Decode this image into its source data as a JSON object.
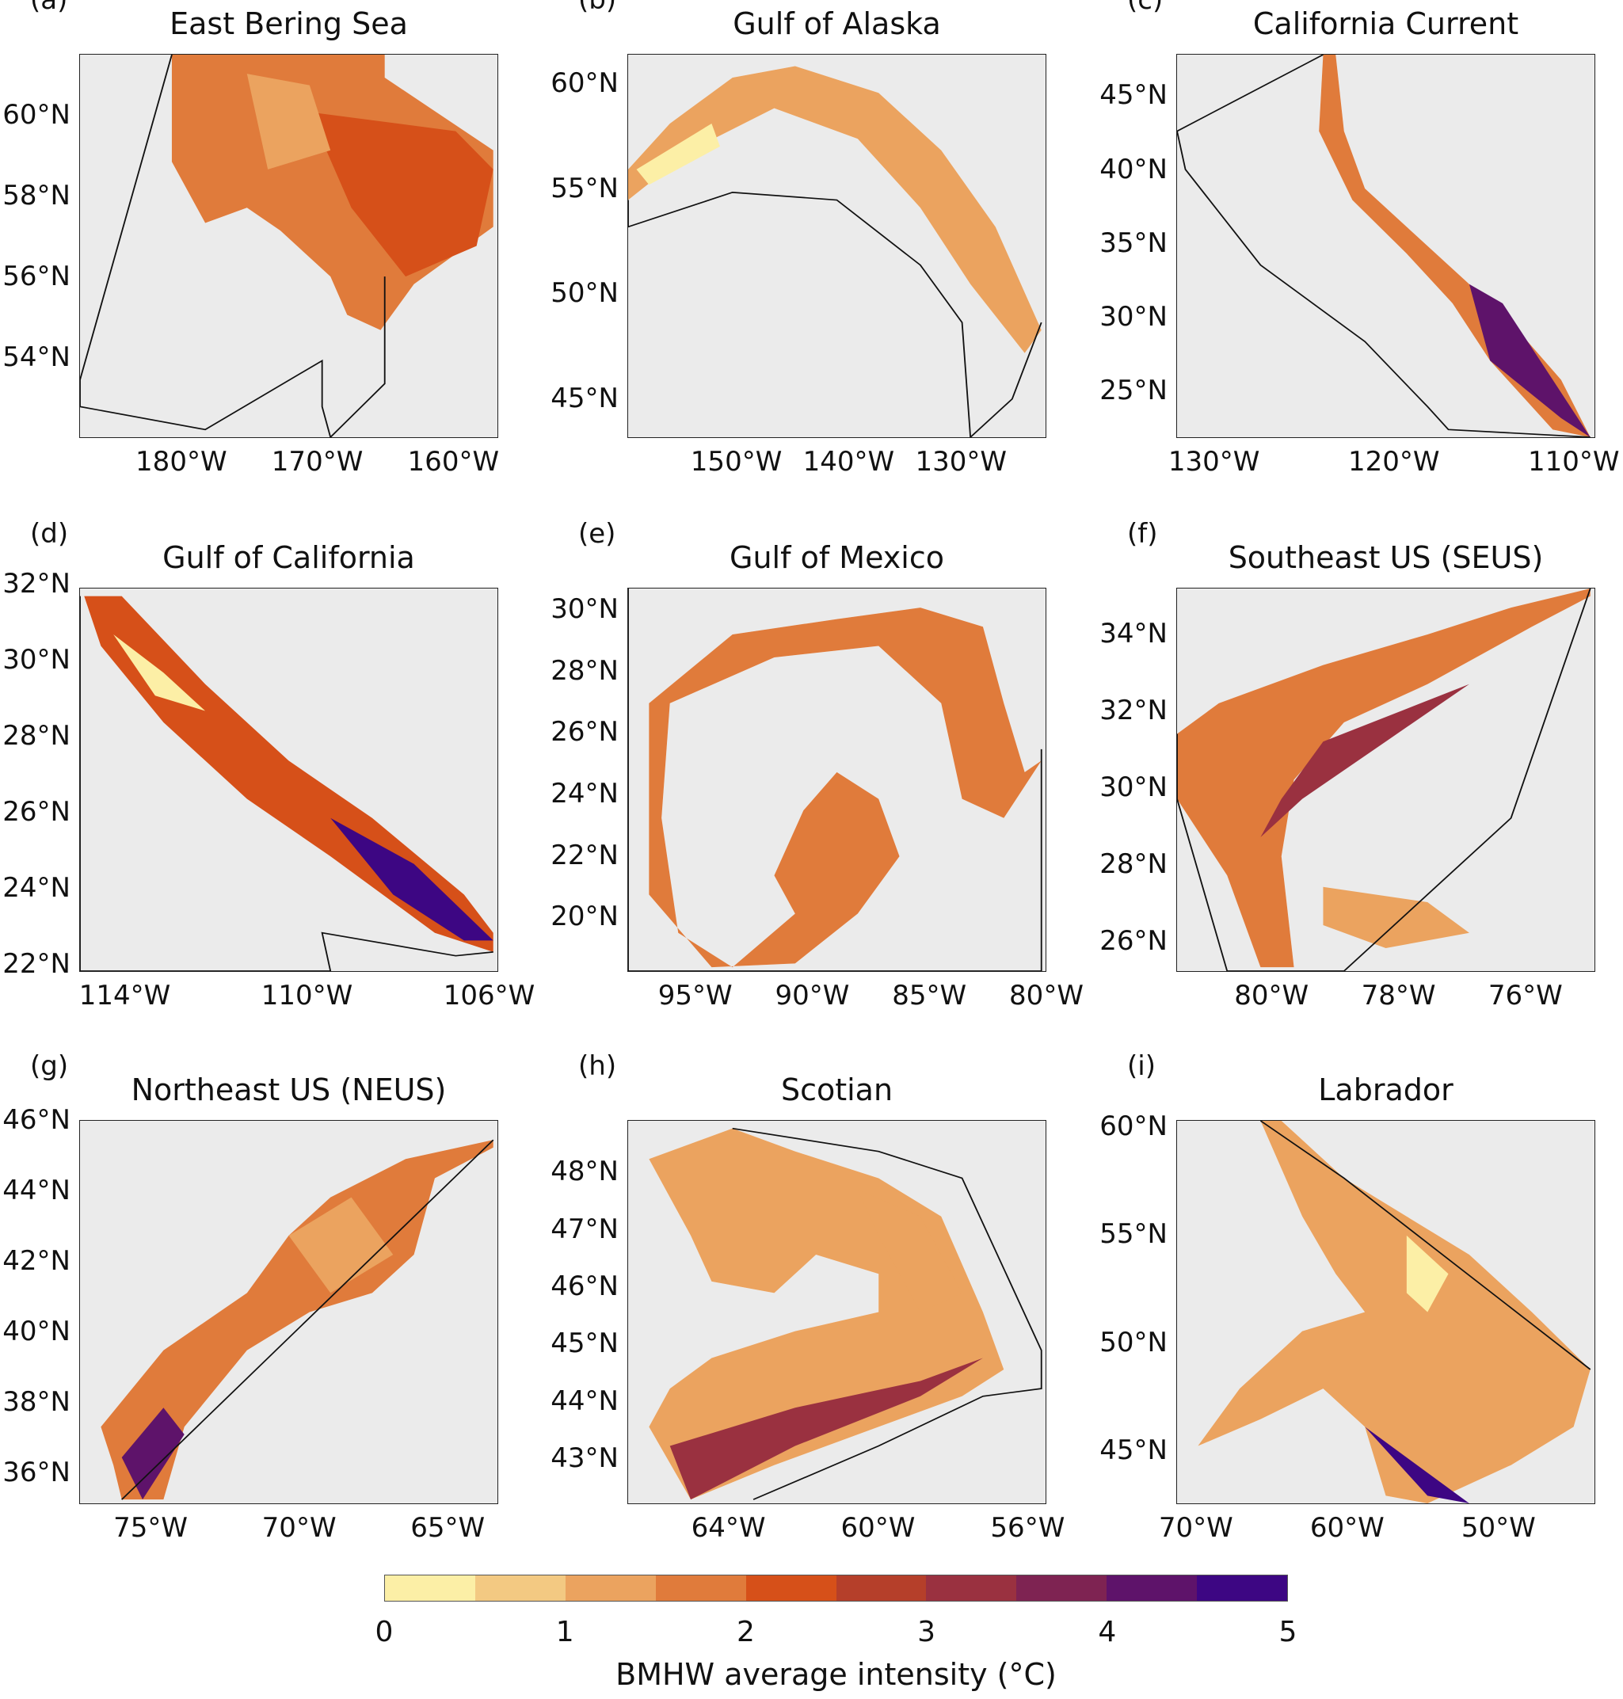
{
  "colorbar": {
    "label": "BMHW average intensity (°C)",
    "range": [
      0,
      5
    ],
    "ticks": [
      "0",
      "1",
      "2",
      "3",
      "4",
      "5"
    ],
    "colors": [
      "#fcefa6",
      "#f3c982",
      "#eba35f",
      "#e07b3b",
      "#d65019",
      "#b53f2a",
      "#9a3140",
      "#7e2352",
      "#5e136a",
      "#3d0683"
    ]
  },
  "panels": [
    {
      "letter": "(a)",
      "title": "East Bering Sea",
      "lon_range": [
        -187.5,
        -156.7
      ],
      "lat_range": [
        52.0,
        61.5
      ],
      "xticks": [
        {
          "v": -180,
          "t": "180°W"
        },
        {
          "v": -170,
          "t": "170°W"
        },
        {
          "v": -160,
          "t": "160°W"
        }
      ],
      "yticks": [
        {
          "v": 60,
          "t": "60°N"
        },
        {
          "v": 58,
          "t": "58°N"
        },
        {
          "v": 56,
          "t": "56°N"
        },
        {
          "v": 54,
          "t": "54°N"
        }
      ]
    },
    {
      "letter": "(b)",
      "title": "Gulf of Alaska",
      "lon_range": [
        -159.7,
        -122.4
      ],
      "lat_range": [
        43.1,
        61.4
      ],
      "xticks": [
        {
          "v": -150,
          "t": "150°W"
        },
        {
          "v": -140,
          "t": "140°W"
        },
        {
          "v": -130,
          "t": "130°W"
        }
      ],
      "yticks": [
        {
          "v": 60,
          "t": "60°N"
        },
        {
          "v": 55,
          "t": "55°N"
        },
        {
          "v": 50,
          "t": "50°N"
        },
        {
          "v": 45,
          "t": "45°N"
        }
      ]
    },
    {
      "letter": "(c)",
      "title": "California Current",
      "lon_range": [
        -132.1,
        -108.8
      ],
      "lat_range": [
        21.8,
        47.8
      ],
      "xticks": [
        {
          "v": -130,
          "t": "130°W"
        },
        {
          "v": -120,
          "t": "120°W"
        },
        {
          "v": -110,
          "t": "110°W"
        }
      ],
      "yticks": [
        {
          "v": 45,
          "t": "45°N"
        },
        {
          "v": 40,
          "t": "40°N"
        },
        {
          "v": 35,
          "t": "35°N"
        },
        {
          "v": 30,
          "t": "30°N"
        },
        {
          "v": 25,
          "t": "25°N"
        }
      ]
    },
    {
      "letter": "(d)",
      "title": "Gulf of California",
      "lon_range": [
        -115.0,
        -105.8
      ],
      "lat_range": [
        21.8,
        31.9
      ],
      "xticks": [
        {
          "v": -114,
          "t": "114°W"
        },
        {
          "v": -110,
          "t": "110°W"
        },
        {
          "v": -106,
          "t": "106°W"
        }
      ],
      "yticks": [
        {
          "v": 32,
          "t": "32°N"
        },
        {
          "v": 30,
          "t": "30°N"
        },
        {
          "v": 28,
          "t": "28°N"
        },
        {
          "v": 26,
          "t": "26°N"
        },
        {
          "v": 24,
          "t": "24°N"
        },
        {
          "v": 22,
          "t": "22°N"
        }
      ]
    },
    {
      "letter": "(e)",
      "title": "Gulf of Mexico",
      "lon_range": [
        -97.9,
        -80.0
      ],
      "lat_range": [
        18.2,
        30.7
      ],
      "xticks": [
        {
          "v": -95,
          "t": "95°W"
        },
        {
          "v": -90,
          "t": "90°W"
        },
        {
          "v": -85,
          "t": "85°W"
        },
        {
          "v": -80,
          "t": "80°W"
        }
      ],
      "yticks": [
        {
          "v": 30,
          "t": "30°N"
        },
        {
          "v": 28,
          "t": "28°N"
        },
        {
          "v": 26,
          "t": "26°N"
        },
        {
          "v": 24,
          "t": "24°N"
        },
        {
          "v": 22,
          "t": "22°N"
        },
        {
          "v": 20,
          "t": "20°N"
        }
      ]
    },
    {
      "letter": "(f)",
      "title": "Southeast US (SEUS)",
      "lon_range": [
        -81.5,
        -74.9
      ],
      "lat_range": [
        25.2,
        35.2
      ],
      "xticks": [
        {
          "v": -80,
          "t": "80°W"
        },
        {
          "v": -78,
          "t": "78°W"
        },
        {
          "v": -76,
          "t": "76°W"
        }
      ],
      "yticks": [
        {
          "v": 34,
          "t": "34°N"
        },
        {
          "v": 32,
          "t": "32°N"
        },
        {
          "v": 30,
          "t": "30°N"
        },
        {
          "v": 28,
          "t": "28°N"
        },
        {
          "v": 26,
          "t": "26°N"
        }
      ]
    },
    {
      "letter": "(g)",
      "title": "Northeast US (NEUS)",
      "lon_range": [
        -77.4,
        -63.3
      ],
      "lat_range": [
        35.1,
        46.0
      ],
      "xticks": [
        {
          "v": -75,
          "t": "75°W"
        },
        {
          "v": -70,
          "t": "70°W"
        },
        {
          "v": -65,
          "t": "65°W"
        }
      ],
      "yticks": [
        {
          "v": 46,
          "t": "46°N"
        },
        {
          "v": 44,
          "t": "44°N"
        },
        {
          "v": 42,
          "t": "42°N"
        },
        {
          "v": 40,
          "t": "40°N"
        },
        {
          "v": 38,
          "t": "38°N"
        },
        {
          "v": 36,
          "t": "36°N"
        }
      ]
    },
    {
      "letter": "(h)",
      "title": "Scotian",
      "lon_range": [
        -66.7,
        -55.5
      ],
      "lat_range": [
        42.2,
        48.9
      ],
      "xticks": [
        {
          "v": -64,
          "t": "64°W"
        },
        {
          "v": -60,
          "t": "60°W"
        },
        {
          "v": -56,
          "t": "56°W"
        }
      ],
      "yticks": [
        {
          "v": 48,
          "t": "48°N"
        },
        {
          "v": 47,
          "t": "47°N"
        },
        {
          "v": 46,
          "t": "46°N"
        },
        {
          "v": 45,
          "t": "45°N"
        },
        {
          "v": 44,
          "t": "44°N"
        },
        {
          "v": 43,
          "t": "43°N"
        }
      ]
    },
    {
      "letter": "(i)",
      "title": "Labrador",
      "lon_range": [
        -71.3,
        -43.6
      ],
      "lat_range": [
        42.5,
        60.3
      ],
      "xticks": [
        {
          "v": -70,
          "t": "70°W"
        },
        {
          "v": -60,
          "t": "60°W"
        },
        {
          "v": -50,
          "t": "50°W"
        }
      ],
      "yticks": [
        {
          "v": 60,
          "t": "60°N"
        },
        {
          "v": 55,
          "t": "55°N"
        },
        {
          "v": 50,
          "t": "50°N"
        },
        {
          "v": 45,
          "t": "45°N"
        }
      ]
    }
  ]
}
